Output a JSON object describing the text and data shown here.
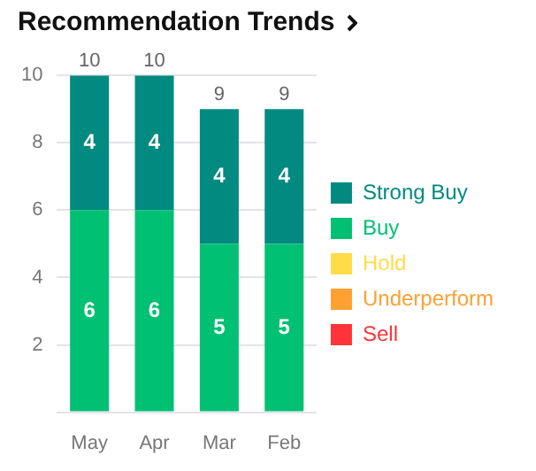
{
  "chart_data": {
    "type": "bar",
    "title": "Recommendation Trends",
    "stacked": true,
    "categories": [
      "May",
      "Apr",
      "Mar",
      "Feb"
    ],
    "series": [
      {
        "name": "Sell",
        "color": "#ff333a",
        "values": [
          0,
          0,
          0,
          0
        ]
      },
      {
        "name": "Underperform",
        "color": "#ffa033",
        "values": [
          0,
          0,
          0,
          0
        ]
      },
      {
        "name": "Hold",
        "color": "#ffdc48",
        "values": [
          0,
          0,
          0,
          0
        ]
      },
      {
        "name": "Buy",
        "color": "#00c073",
        "values": [
          6,
          6,
          5,
          5
        ],
        "value_labels": [
          "6",
          "6",
          "5",
          "5"
        ]
      },
      {
        "name": "Strong Buy",
        "color": "#008a80",
        "values": [
          4,
          4,
          4,
          4
        ],
        "value_labels": [
          "4",
          "4",
          "4",
          "4"
        ]
      }
    ],
    "totals": [
      "10",
      "10",
      "9",
      "9"
    ],
    "ylim": [
      0,
      10
    ],
    "yticks": [
      {
        "value": 0,
        "label": null
      },
      2,
      4,
      6,
      8,
      10
    ],
    "grid": "y",
    "legend": "right"
  }
}
